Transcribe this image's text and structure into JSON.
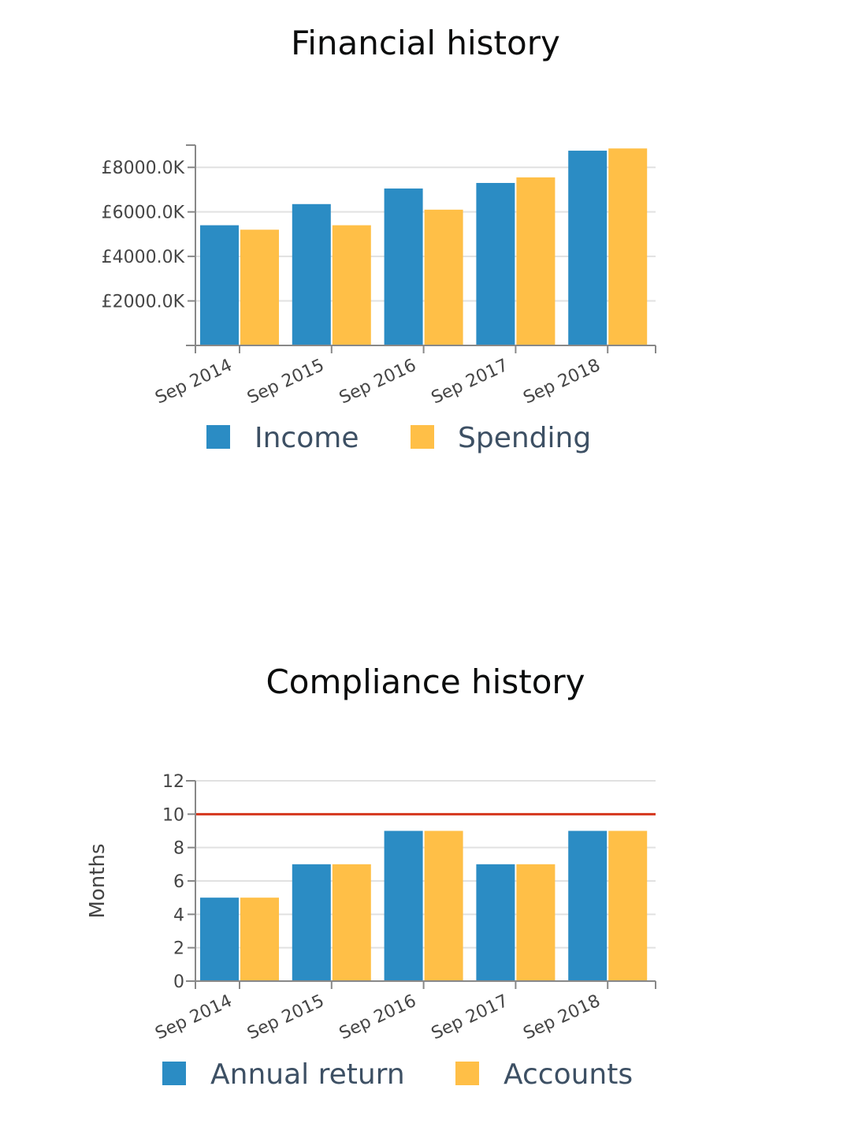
{
  "charts": [
    {
      "id": "financial",
      "chart_data": {
        "type": "bar",
        "title": "Financial history",
        "categories": [
          "Sep 2014",
          "Sep 2015",
          "Sep 2016",
          "Sep 2017",
          "Sep 2018"
        ],
        "series": [
          {
            "name": "Income",
            "color": "#2b8cc4",
            "values": [
              5400,
              6350,
              7050,
              7300,
              8750
            ]
          },
          {
            "name": "Spending",
            "color": "#ffbf47",
            "values": [
              5200,
              5400,
              6100,
              7550,
              8850
            ]
          }
        ],
        "ylim": [
          0,
          9000
        ],
        "yticks": [
          2000,
          4000,
          6000,
          8000
        ],
        "ytick_labels": [
          "£2000.0K",
          "£4000.0K",
          "£6000.0K",
          "£8000.0K"
        ],
        "xlabel": "",
        "ylabel": "",
        "grid": true,
        "legend": "bottom"
      }
    },
    {
      "id": "compliance",
      "chart_data": {
        "type": "bar",
        "title": "Compliance history",
        "categories": [
          "Sep 2014",
          "Sep 2015",
          "Sep 2016",
          "Sep 2017",
          "Sep 2018"
        ],
        "series": [
          {
            "name": "Annual return",
            "color": "#2b8cc4",
            "values": [
              5,
              7,
              9,
              7,
              9
            ]
          },
          {
            "name": "Accounts",
            "color": "#ffbf47",
            "values": [
              5,
              7,
              9,
              7,
              9
            ]
          }
        ],
        "ylim": [
          0,
          12
        ],
        "yticks": [
          0,
          2,
          4,
          6,
          8,
          10,
          12
        ],
        "ytick_labels": [
          "0",
          "2",
          "4",
          "6",
          "8",
          "10",
          "12"
        ],
        "xlabel": "",
        "ylabel": "Months",
        "reference_line": {
          "value": 10,
          "color": "#d4351c"
        },
        "grid": true,
        "legend": "bottom"
      }
    }
  ]
}
